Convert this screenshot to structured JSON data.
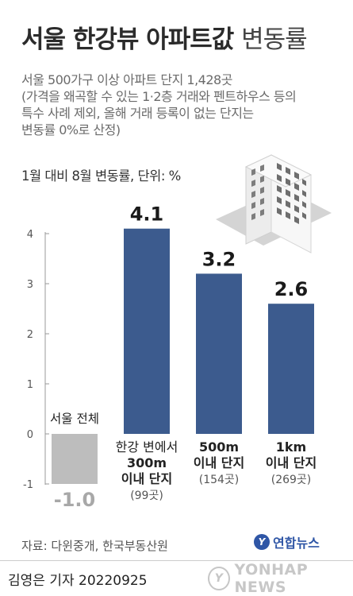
{
  "header": {
    "title_bold": "서울 한강뷰 아파트값",
    "title_light": "변동률",
    "subtitle_lines": [
      "서울 500가구 이상 아파트 단지 1,428곳",
      "(가격을 왜곡할 수 있는 1·2층 거래와 펜트하우스 등의",
      "특수 사례 제외, 올해 거래 등록이 없는 단지는",
      "변동률 0%로 산정)"
    ],
    "unit_label": "1월 대비 8월 변동률, 단위: %"
  },
  "chart_data": {
    "type": "bar",
    "categories": [
      "서울 전체",
      "한강 변에서 300m 이내 단지",
      "500m 이내 단지",
      "1km 이내 단지"
    ],
    "values": [
      -1.0,
      4.1,
      3.2,
      2.6
    ],
    "value_labels": [
      "-1.0",
      "4.1",
      "3.2",
      "2.6"
    ],
    "category_lines": [
      [
        "서울 전체"
      ],
      [
        "한강 변에서",
        "300m",
        "이내 단지",
        "(99곳)"
      ],
      [
        "500m",
        "이내 단지",
        "(154곳)"
      ],
      [
        "1km",
        "이내 단지",
        "(269곳)"
      ]
    ],
    "ylim": [
      -1,
      4
    ],
    "yticks": [
      4,
      3,
      2,
      1,
      0,
      -1
    ],
    "grid": false,
    "colors": {
      "positive": "#3c5b8e",
      "negative": "#bdbdbd",
      "negative_label": "#a8a8a8"
    }
  },
  "footer": {
    "source": "자료: 다윈중개, 한국부동산원",
    "logo_text": "연합뉴스",
    "byline": "김영은 기자  20220925",
    "watermark": "YONHAP NEWS"
  }
}
